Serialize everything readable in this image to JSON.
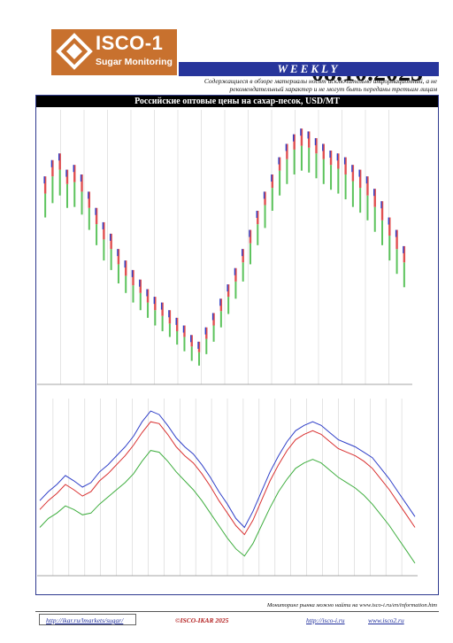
{
  "header": {
    "logo_name": "ISCO-1",
    "logo_sub": "Sugar Monitoring",
    "date": "08.10.2025",
    "edition": "WEEKLY",
    "disclaimer": "Содержащиеся в обзоре материалы носят исключительно информационный, а не рекомендательный характер и не могут быть переданы третьим лицам"
  },
  "colors": {
    "accent_blue": "#27359b",
    "logo_orange": "#c8712e"
  },
  "main": {
    "title": "Российские оптовые цены на сахар-песок, USD/MT"
  },
  "footer": {
    "note": "Мониторинг рынка можно найти на www.isco-i.ru/en/information.htm",
    "link1": "http://ikar.ru/lmarkets/sugar/",
    "copyright": "©ISCO-IKAR 2025",
    "link2": "http://isco-i.ru",
    "link3": "www.isco2.ru"
  },
  "chart_data": [
    {
      "type": "candlestick",
      "series": [
        {
          "name": "high",
          "values": [
            688,
            705,
            712,
            695,
            700,
            690,
            672,
            655,
            640,
            628,
            612,
            600,
            590,
            580,
            570,
            562,
            556,
            548,
            540,
            532,
            522,
            515,
            530,
            545,
            560,
            575,
            592,
            612,
            632,
            652,
            672,
            690,
            708,
            722,
            732,
            738,
            735,
            728,
            722,
            715,
            712,
            708,
            700,
            695,
            688,
            675,
            662,
            645,
            632,
            615
          ]
        },
        {
          "name": "close",
          "values": [
            670,
            688,
            695,
            680,
            682,
            672,
            655,
            638,
            622,
            612,
            596,
            584,
            574,
            566,
            556,
            548,
            542,
            534,
            526,
            520,
            510,
            504,
            518,
            532,
            547,
            562,
            578,
            598,
            618,
            638,
            658,
            676,
            694,
            706,
            716,
            720,
            718,
            712,
            706,
            700,
            696,
            690,
            683,
            676,
            668,
            656,
            642,
            626,
            612,
            598
          ]
        },
        {
          "name": "low",
          "values": [
            645,
            660,
            668,
            655,
            656,
            648,
            632,
            616,
            600,
            590,
            576,
            566,
            556,
            548,
            540,
            532,
            526,
            520,
            512,
            505,
            495,
            490,
            502,
            515,
            530,
            544,
            560,
            578,
            596,
            616,
            634,
            652,
            668,
            680,
            690,
            694,
            692,
            686,
            680,
            674,
            670,
            664,
            656,
            650,
            642,
            630,
            616,
            600,
            586,
            572
          ]
        }
      ]
    },
    {
      "type": "line",
      "series": [
        {
          "name": "high",
          "values": [
            640,
            650,
            658,
            668,
            662,
            655,
            660,
            672,
            680,
            690,
            700,
            712,
            728,
            740,
            736,
            724,
            710,
            700,
            692,
            680,
            666,
            650,
            636,
            620,
            610,
            628,
            650,
            672,
            690,
            706,
            718,
            724,
            728,
            724,
            716,
            708,
            704,
            700,
            694,
            688,
            676,
            664,
            650,
            636,
            622
          ]
        },
        {
          "name": "close",
          "values": [
            630,
            640,
            648,
            658,
            652,
            645,
            650,
            662,
            670,
            680,
            690,
            702,
            716,
            728,
            726,
            714,
            700,
            690,
            682,
            670,
            656,
            640,
            626,
            612,
            602,
            618,
            640,
            662,
            680,
            696,
            708,
            714,
            718,
            714,
            706,
            698,
            694,
            690,
            684,
            676,
            664,
            652,
            638,
            624,
            610
          ]
        },
        {
          "name": "low",
          "values": [
            610,
            620,
            626,
            634,
            630,
            624,
            626,
            636,
            644,
            652,
            660,
            670,
            684,
            696,
            694,
            684,
            672,
            662,
            652,
            640,
            626,
            612,
            598,
            586,
            578,
            592,
            612,
            632,
            650,
            664,
            676,
            682,
            686,
            682,
            674,
            666,
            660,
            654,
            646,
            636,
            624,
            612,
            598,
            584,
            570
          ]
        }
      ]
    }
  ]
}
